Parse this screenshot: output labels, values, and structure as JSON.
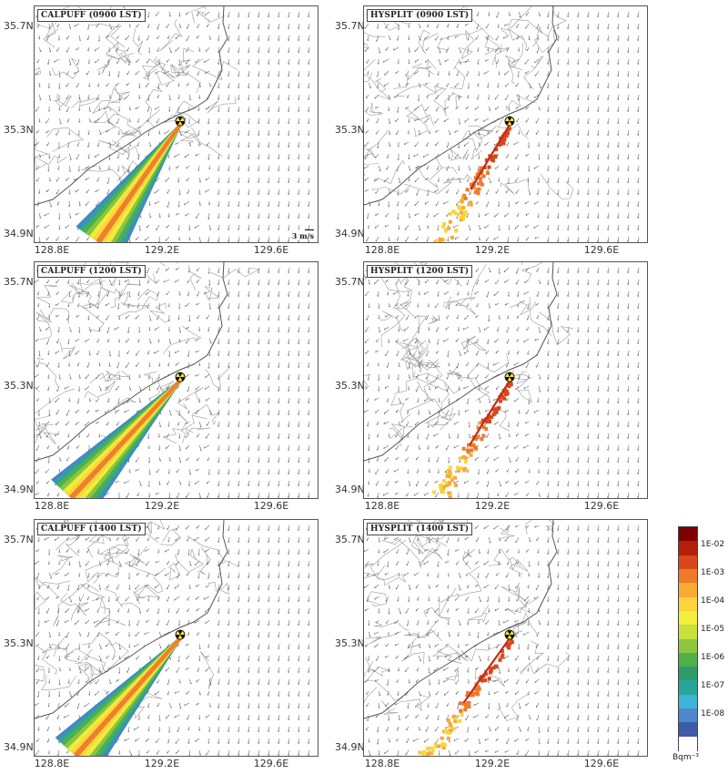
{
  "panels": [
    {
      "title": "CALPUFF (0900 LST)",
      "model": "CALPUFF",
      "time": "0900"
    },
    {
      "title": "HYSPLIT (0900 LST)",
      "model": "HYSPLIT",
      "time": "0900"
    },
    {
      "title": "CALPUFF (1200 LST)",
      "model": "CALPUFF",
      "time": "1200"
    },
    {
      "title": "HYSPLIT (1200 LST)",
      "model": "HYSPLIT",
      "time": "1200"
    },
    {
      "title": "CALPUFF (1400 LST)",
      "model": "CALPUFF",
      "time": "1400"
    },
    {
      "title": "HYSPLIT (1400 LST)",
      "model": "HYSPLIT",
      "time": "1400"
    }
  ],
  "axes": {
    "lat_labels": [
      "35.7N",
      "35.3N",
      "34.9N"
    ],
    "lon_labels": [
      "128.8E",
      "129.2E",
      "129.6E"
    ]
  },
  "reference_vector": "3 m/s",
  "colorbar": {
    "ticks": [
      "1E-02",
      "1E-03",
      "1E-04",
      "1E-05",
      "1E-06",
      "1E-07",
      "1E-08"
    ],
    "unit": "Bqm⁻³",
    "colors": [
      "#7f0000",
      "#b41f0a",
      "#d8471a",
      "#ee7a2a",
      "#f6ab32",
      "#fbd43c",
      "#f5ee3c",
      "#c8e03a",
      "#8cc63f",
      "#4fb04a",
      "#2f9a6a",
      "#2aa59a",
      "#3fb2d8",
      "#4d89cc",
      "#3e5aa8",
      "#ffffff"
    ]
  },
  "source_marker": "radiation-trefoil-icon"
}
